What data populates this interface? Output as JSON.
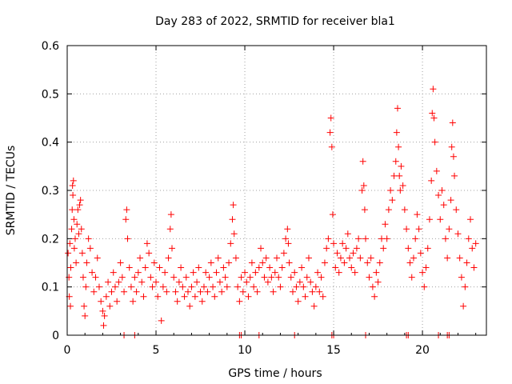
{
  "chart_data": {
    "type": "scatter",
    "title": "Day 283 of 2022, SRMTID for receiver bla1",
    "xlabel": "GPS time / hours",
    "ylabel": "SRMTID / TECUs",
    "xlim": [
      0,
      23.6
    ],
    "ylim": [
      0,
      0.6
    ],
    "x_ticks": [
      0,
      5,
      10,
      15,
      20
    ],
    "x_tick_labels": [
      "0",
      "5",
      "10",
      "15",
      "20"
    ],
    "y_ticks": [
      0,
      0.1,
      0.2,
      0.3,
      0.4,
      0.5,
      0.6
    ],
    "y_tick_labels": [
      "0",
      "0.1",
      "0.2",
      "0.3",
      "0.4",
      "0.5",
      "0.6"
    ],
    "grid": true,
    "marker": "+",
    "color": "#ff0000",
    "series": [
      {
        "name": "SRMTID",
        "points": [
          [
            0.05,
            0.17
          ],
          [
            0.1,
            0.12
          ],
          [
            0.12,
            0.08
          ],
          [
            0.15,
            0.19
          ],
          [
            0.18,
            0.06
          ],
          [
            0.2,
            0.14
          ],
          [
            0.25,
            0.22
          ],
          [
            0.28,
            0.26
          ],
          [
            0.3,
            0.31
          ],
          [
            0.32,
            0.29
          ],
          [
            0.35,
            0.32
          ],
          [
            0.38,
            0.24
          ],
          [
            0.4,
            0.18
          ],
          [
            0.45,
            0.2
          ],
          [
            0.5,
            0.15
          ],
          [
            0.55,
            0.23
          ],
          [
            0.6,
            0.26
          ],
          [
            0.65,
            0.21
          ],
          [
            0.7,
            0.27
          ],
          [
            0.75,
            0.28
          ],
          [
            0.8,
            0.22
          ],
          [
            0.85,
            0.17
          ],
          [
            0.9,
            0.12
          ],
          [
            0.95,
            0.06
          ],
          [
            1.0,
            0.04
          ],
          [
            1.05,
            0.1
          ],
          [
            1.1,
            0.15
          ],
          [
            1.2,
            0.2
          ],
          [
            1.3,
            0.18
          ],
          [
            1.4,
            0.13
          ],
          [
            1.5,
            0.09
          ],
          [
            1.6,
            0.12
          ],
          [
            1.7,
            0.16
          ],
          [
            1.8,
            0.1
          ],
          [
            1.9,
            0.07
          ],
          [
            2.0,
            0.05
          ],
          [
            2.05,
            0.02
          ],
          [
            2.1,
            0.04
          ],
          [
            2.2,
            0.08
          ],
          [
            2.3,
            0.11
          ],
          [
            2.4,
            0.06
          ],
          [
            2.5,
            0.09
          ],
          [
            2.6,
            0.13
          ],
          [
            2.7,
            0.1
          ],
          [
            2.8,
            0.07
          ],
          [
            2.9,
            0.11
          ],
          [
            3.0,
            0.15
          ],
          [
            3.1,
            0.12
          ],
          [
            3.2,
            0.09
          ],
          [
            3.3,
            0.24
          ],
          [
            3.35,
            0.26
          ],
          [
            3.4,
            0.2
          ],
          [
            3.5,
            0.14
          ],
          [
            3.6,
            0.1
          ],
          [
            3.7,
            0.07
          ],
          [
            3.8,
            0.12
          ],
          [
            3.9,
            0.09
          ],
          [
            4.0,
            0.13
          ],
          [
            4.1,
            0.16
          ],
          [
            4.2,
            0.11
          ],
          [
            4.3,
            0.08
          ],
          [
            4.4,
            0.14
          ],
          [
            4.5,
            0.19
          ],
          [
            4.6,
            0.17
          ],
          [
            4.7,
            0.12
          ],
          [
            4.8,
            0.1
          ],
          [
            4.9,
            0.15
          ],
          [
            5.0,
            0.11
          ],
          [
            5.1,
            0.08
          ],
          [
            5.2,
            0.14
          ],
          [
            5.3,
            0.03
          ],
          [
            5.4,
            0.1
          ],
          [
            5.5,
            0.13
          ],
          [
            5.6,
            0.09
          ],
          [
            5.7,
            0.16
          ],
          [
            5.8,
            0.22
          ],
          [
            5.85,
            0.25
          ],
          [
            5.9,
            0.18
          ],
          [
            6.0,
            0.12
          ],
          [
            6.1,
            0.09
          ],
          [
            6.2,
            0.07
          ],
          [
            6.3,
            0.11
          ],
          [
            6.4,
            0.14
          ],
          [
            6.5,
            0.1
          ],
          [
            6.6,
            0.08
          ],
          [
            6.7,
            0.12
          ],
          [
            6.8,
            0.09
          ],
          [
            6.9,
            0.06
          ],
          [
            7.0,
            0.1
          ],
          [
            7.1,
            0.13
          ],
          [
            7.2,
            0.08
          ],
          [
            7.3,
            0.11
          ],
          [
            7.4,
            0.14
          ],
          [
            7.5,
            0.09
          ],
          [
            7.6,
            0.07
          ],
          [
            7.7,
            0.1
          ],
          [
            7.8,
            0.13
          ],
          [
            7.9,
            0.09
          ],
          [
            8.0,
            0.12
          ],
          [
            8.1,
            0.15
          ],
          [
            8.2,
            0.1
          ],
          [
            8.3,
            0.08
          ],
          [
            8.4,
            0.13
          ],
          [
            8.5,
            0.16
          ],
          [
            8.6,
            0.11
          ],
          [
            8.7,
            0.09
          ],
          [
            8.8,
            0.14
          ],
          [
            8.9,
            0.12
          ],
          [
            9.0,
            0.1
          ],
          [
            9.1,
            0.15
          ],
          [
            9.2,
            0.19
          ],
          [
            9.3,
            0.24
          ],
          [
            9.35,
            0.27
          ],
          [
            9.4,
            0.21
          ],
          [
            9.5,
            0.16
          ],
          [
            9.6,
            0.1
          ],
          [
            9.7,
            0.07
          ],
          [
            9.8,
            0.12
          ],
          [
            9.9,
            0.09
          ],
          [
            10.0,
            0.13
          ],
          [
            10.1,
            0.11
          ],
          [
            10.2,
            0.08
          ],
          [
            10.3,
            0.12
          ],
          [
            10.4,
            0.15
          ],
          [
            10.5,
            0.1
          ],
          [
            10.6,
            0.13
          ],
          [
            10.7,
            0.09
          ],
          [
            10.8,
            0.14
          ],
          [
            10.9,
            0.18
          ],
          [
            11.0,
            0.15
          ],
          [
            11.1,
            0.12
          ],
          [
            11.2,
            0.16
          ],
          [
            11.3,
            0.11
          ],
          [
            11.4,
            0.14
          ],
          [
            11.5,
            0.12
          ],
          [
            11.6,
            0.09
          ],
          [
            11.7,
            0.13
          ],
          [
            11.8,
            0.16
          ],
          [
            11.9,
            0.12
          ],
          [
            12.0,
            0.1
          ],
          [
            12.1,
            0.14
          ],
          [
            12.2,
            0.17
          ],
          [
            12.3,
            0.2
          ],
          [
            12.4,
            0.22
          ],
          [
            12.45,
            0.19
          ],
          [
            12.5,
            0.15
          ],
          [
            12.6,
            0.12
          ],
          [
            12.7,
            0.09
          ],
          [
            12.8,
            0.13
          ],
          [
            12.9,
            0.1
          ],
          [
            13.0,
            0.07
          ],
          [
            13.1,
            0.11
          ],
          [
            13.2,
            0.14
          ],
          [
            13.3,
            0.1
          ],
          [
            13.4,
            0.08
          ],
          [
            13.5,
            0.12
          ],
          [
            13.6,
            0.16
          ],
          [
            13.7,
            0.11
          ],
          [
            13.8,
            0.09
          ],
          [
            13.9,
            0.06
          ],
          [
            14.0,
            0.1
          ],
          [
            14.1,
            0.13
          ],
          [
            14.2,
            0.09
          ],
          [
            14.3,
            0.12
          ],
          [
            14.4,
            0.08
          ],
          [
            14.5,
            0.15
          ],
          [
            14.6,
            0.18
          ],
          [
            14.7,
            0.2
          ],
          [
            14.8,
            0.42
          ],
          [
            14.85,
            0.45
          ],
          [
            14.9,
            0.39
          ],
          [
            14.95,
            0.25
          ],
          [
            15.0,
            0.19
          ],
          [
            15.1,
            0.14
          ],
          [
            15.2,
            0.17
          ],
          [
            15.3,
            0.13
          ],
          [
            15.4,
            0.16
          ],
          [
            15.5,
            0.19
          ],
          [
            15.6,
            0.15
          ],
          [
            15.7,
            0.18
          ],
          [
            15.8,
            0.21
          ],
          [
            15.9,
            0.16
          ],
          [
            16.0,
            0.14
          ],
          [
            16.1,
            0.17
          ],
          [
            16.2,
            0.13
          ],
          [
            16.3,
            0.18
          ],
          [
            16.4,
            0.2
          ],
          [
            16.5,
            0.16
          ],
          [
            16.6,
            0.3
          ],
          [
            16.65,
            0.36
          ],
          [
            16.7,
            0.31
          ],
          [
            16.75,
            0.26
          ],
          [
            16.8,
            0.2
          ],
          [
            16.9,
            0.15
          ],
          [
            17.0,
            0.12
          ],
          [
            17.1,
            0.16
          ],
          [
            17.2,
            0.1
          ],
          [
            17.3,
            0.08
          ],
          [
            17.4,
            0.13
          ],
          [
            17.5,
            0.11
          ],
          [
            17.6,
            0.15
          ],
          [
            17.7,
            0.2
          ],
          [
            17.8,
            0.18
          ],
          [
            17.9,
            0.23
          ],
          [
            18.0,
            0.2
          ],
          [
            18.1,
            0.26
          ],
          [
            18.2,
            0.3
          ],
          [
            18.3,
            0.28
          ],
          [
            18.4,
            0.33
          ],
          [
            18.5,
            0.36
          ],
          [
            18.55,
            0.42
          ],
          [
            18.6,
            0.47
          ],
          [
            18.65,
            0.39
          ],
          [
            18.7,
            0.33
          ],
          [
            18.75,
            0.3
          ],
          [
            18.8,
            0.35
          ],
          [
            18.9,
            0.31
          ],
          [
            19.0,
            0.26
          ],
          [
            19.1,
            0.22
          ],
          [
            19.2,
            0.18
          ],
          [
            19.3,
            0.15
          ],
          [
            19.4,
            0.12
          ],
          [
            19.5,
            0.16
          ],
          [
            19.6,
            0.2
          ],
          [
            19.7,
            0.25
          ],
          [
            19.8,
            0.22
          ],
          [
            19.9,
            0.17
          ],
          [
            20.0,
            0.13
          ],
          [
            20.1,
            0.1
          ],
          [
            20.2,
            0.14
          ],
          [
            20.3,
            0.18
          ],
          [
            20.4,
            0.24
          ],
          [
            20.5,
            0.32
          ],
          [
            20.55,
            0.46
          ],
          [
            20.6,
            0.51
          ],
          [
            20.65,
            0.45
          ],
          [
            20.7,
            0.4
          ],
          [
            20.8,
            0.34
          ],
          [
            20.9,
            0.29
          ],
          [
            21.0,
            0.24
          ],
          [
            21.1,
            0.3
          ],
          [
            21.2,
            0.27
          ],
          [
            21.3,
            0.2
          ],
          [
            21.4,
            0.16
          ],
          [
            21.5,
            0.22
          ],
          [
            21.6,
            0.28
          ],
          [
            21.65,
            0.39
          ],
          [
            21.7,
            0.44
          ],
          [
            21.75,
            0.37
          ],
          [
            21.8,
            0.33
          ],
          [
            21.9,
            0.26
          ],
          [
            22.0,
            0.21
          ],
          [
            22.1,
            0.16
          ],
          [
            22.2,
            0.12
          ],
          [
            22.3,
            0.06
          ],
          [
            22.4,
            0.1
          ],
          [
            22.5,
            0.15
          ],
          [
            22.6,
            0.2
          ],
          [
            22.7,
            0.24
          ],
          [
            22.8,
            0.18
          ],
          [
            22.9,
            0.14
          ],
          [
            23.0,
            0.19
          ]
        ]
      }
    ],
    "zero_points_x": [
      3.2,
      3.8,
      9.7,
      9.8,
      10.8,
      12.8,
      14.9,
      15.0,
      16.8,
      19.1,
      19.2,
      20.9,
      21.4,
      21.5
    ]
  }
}
